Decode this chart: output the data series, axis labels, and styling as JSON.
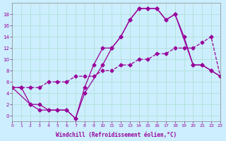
{
  "bg_color": "#cceeff",
  "grid_color": "#aaddcc",
  "line_color": "#990099",
  "xlabel": "Windchill (Refroidissement éolien,°C)",
  "xlim": [
    0,
    23
  ],
  "ylim": [
    -1,
    20
  ],
  "yticks": [
    0,
    2,
    4,
    6,
    8,
    10,
    12,
    14,
    16,
    18
  ],
  "xticks": [
    0,
    1,
    2,
    3,
    4,
    5,
    6,
    7,
    8,
    9,
    10,
    11,
    12,
    13,
    14,
    15,
    16,
    17,
    18,
    19,
    20,
    21,
    22,
    23
  ],
  "line1_x": [
    0,
    1,
    2,
    3,
    4,
    5,
    6,
    7,
    8,
    9,
    10,
    11,
    12,
    13,
    14,
    15,
    16,
    17,
    18,
    19,
    20,
    21,
    22,
    23
  ],
  "line1_y": [
    5,
    5,
    5,
    5,
    6,
    6,
    6,
    7,
    7,
    7,
    8,
    8,
    9,
    9,
    10,
    10,
    11,
    11,
    12,
    12,
    12,
    13,
    14,
    7
  ],
  "line2_x": [
    0,
    1,
    2,
    3,
    4,
    5,
    6,
    7,
    8,
    9,
    10,
    11,
    12,
    13,
    14,
    15,
    16,
    17,
    18,
    19,
    20,
    21,
    22,
    23
  ],
  "line2_y": [
    5,
    5,
    2,
    2,
    1,
    1,
    1,
    -0.5,
    5,
    9,
    12,
    12,
    14,
    17,
    19,
    19,
    19,
    17,
    18,
    14,
    9,
    9,
    8,
    7
  ],
  "line3_x": [
    0,
    2,
    3,
    4,
    5,
    6,
    7,
    8,
    10,
    11,
    12,
    13,
    14,
    15,
    16,
    17,
    18,
    20,
    21,
    22,
    23
  ],
  "line3_y": [
    5,
    2,
    1,
    1,
    1,
    1,
    -0.5,
    4,
    9,
    12,
    14,
    17,
    19,
    19,
    19,
    17,
    18,
    9,
    9,
    8,
    7
  ]
}
